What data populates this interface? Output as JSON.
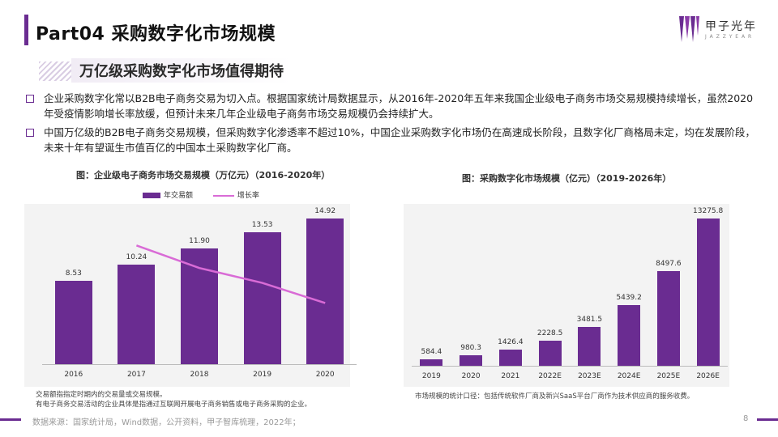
{
  "header": {
    "title": "Part04 采购数字化市场规模",
    "logo_text": "甲子光年",
    "logo_sub": "J A Z Z Y E A R"
  },
  "subtitle": "万亿级采购数字化市场值得期待",
  "bullets": [
    "企业采购数字化常以B2B电子商务交易为切入点。根据国家统计局数据显示，从2016年-2020年五年来我国企业级电子商务市场交易规模持续增长，虽然2020年受疫情影响增长率放缓，但预计未来几年企业级电子商务市场交易规模仍会持续扩大。",
    "中国万亿级的B2B电子商务交易规模，但采购数字化渗透率不超过10%，中国企业采购数字化市场仍在高速成长阶段，且数字化厂商格局未定，均在发展阶段，未来十年有望诞生市值百亿的中国本土采购数字化厂商。"
  ],
  "chart_data": [
    {
      "type": "bar",
      "title": "图：企业级电子商务市场交易规模（万亿元）（2016-2020年）",
      "categories": [
        "2016",
        "2017",
        "2018",
        "2019",
        "2020"
      ],
      "series": [
        {
          "name": "年交易额",
          "type": "bar",
          "values": [
            8.53,
            10.24,
            11.9,
            13.53,
            14.92
          ],
          "color": "#6a2c91"
        },
        {
          "name": "增长率",
          "type": "line",
          "values": [
            null,
            0.2,
            0.162,
            0.137,
            0.103
          ],
          "color": "#d96bd6"
        }
      ],
      "value_labels": [
        "8.53",
        "10.24",
        "11.90",
        "13.53",
        "14.92"
      ],
      "ylim": [
        0,
        17
      ],
      "line_ylim": [
        0,
        0.3
      ],
      "legend": "top-left",
      "grid": false
    },
    {
      "type": "bar",
      "title": "图：采购数字化市场规模（亿元）（2019-2026年）",
      "categories": [
        "2019",
        "2020",
        "2021",
        "2022E",
        "2023E",
        "2024E",
        "2025E",
        "2026E"
      ],
      "values": [
        584.4,
        980.3,
        1426.4,
        2228.5,
        3481.5,
        5439.2,
        8497.6,
        13275.8
      ],
      "value_labels": [
        "584.4",
        "980.3",
        "1426.4",
        "2228.5",
        "3481.5",
        "5439.2",
        "8497.6",
        "13275.8"
      ],
      "ylim": [
        0,
        14000
      ],
      "color": "#6a2c91",
      "grid": false
    }
  ],
  "notes": {
    "left": [
      "交易额指指定时期内的交易量或交易规模。",
      "有电子商务交易活动的企业具体是指通过互联网开展电子商务销售或电子商务采购的企业。"
    ],
    "right": "市场规模的统计口径：包括传统软件厂商及新兴SaaS平台厂商作为技术供应商的服务收费。"
  },
  "footer": {
    "source": "数据来源：国家统计局，Wind数据，公开资料，甲子智库梳理，2022年；",
    "page": "8"
  }
}
